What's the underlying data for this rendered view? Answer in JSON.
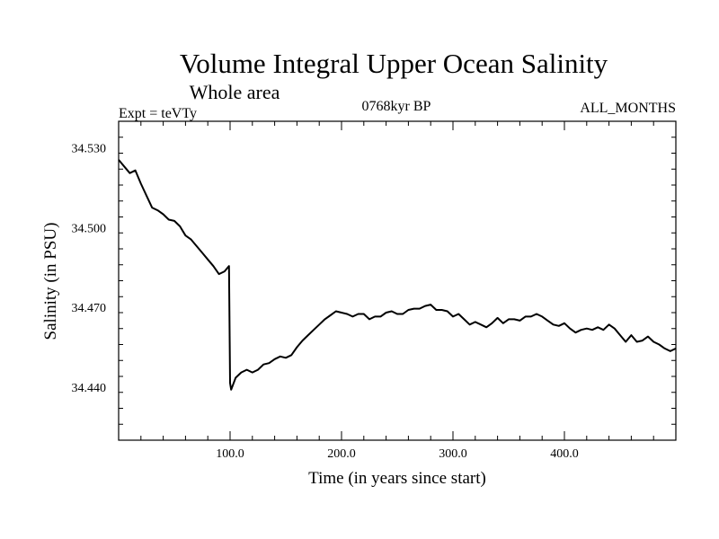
{
  "chart_data": {
    "type": "line",
    "title": "Volume Integral Upper Ocean Salinity",
    "subtitle": "Whole area",
    "info_left": "Expt = teVTy",
    "info_center": "0768kyr BP",
    "info_right": "ALL_MONTHS",
    "xlabel": "Time (in years since start)",
    "ylabel": "Salinity (in PSU)",
    "xlim": [
      0,
      500
    ],
    "ylim": [
      34.42,
      34.54
    ],
    "x_ticks": [
      100.0,
      200.0,
      300.0,
      400.0
    ],
    "x_tick_labels": [
      "100.0",
      "200.0",
      "300.0",
      "400.0"
    ],
    "y_ticks": [
      34.44,
      34.47,
      34.5,
      34.53
    ],
    "y_tick_labels": [
      "34.440",
      "34.470",
      "34.500",
      "34.530"
    ],
    "grid": false,
    "series": [
      {
        "x": [
          0,
          5,
          10,
          15,
          20,
          25,
          30,
          35,
          40,
          45,
          50,
          55,
          60,
          65,
          70,
          75,
          80,
          85,
          90,
          95,
          99,
          100,
          101,
          105,
          110,
          115,
          120,
          125,
          130,
          135,
          140,
          145,
          150,
          155,
          160,
          165,
          170,
          175,
          180,
          185,
          190,
          195,
          200,
          205,
          210,
          215,
          220,
          225,
          230,
          235,
          240,
          245,
          250,
          255,
          260,
          265,
          270,
          275,
          280,
          285,
          290,
          295,
          300,
          305,
          310,
          315,
          320,
          325,
          330,
          335,
          340,
          345,
          350,
          355,
          360,
          365,
          370,
          375,
          380,
          385,
          390,
          395,
          400,
          405,
          410,
          415,
          420,
          425,
          430,
          435,
          440,
          445,
          450,
          455,
          460,
          465,
          470,
          475,
          480,
          485,
          490,
          495,
          500
        ],
        "y": [
          34.5255,
          34.523,
          34.5205,
          34.5215,
          34.5165,
          34.512,
          34.5075,
          34.5065,
          34.505,
          34.503,
          34.5025,
          34.5005,
          34.497,
          34.4955,
          34.493,
          34.4905,
          34.488,
          34.4855,
          34.4825,
          34.4835,
          34.4855,
          34.4415,
          34.439,
          34.4435,
          34.4455,
          34.4465,
          34.4455,
          34.4465,
          34.4485,
          34.449,
          34.4505,
          34.4515,
          34.451,
          34.452,
          34.455,
          34.4575,
          34.4595,
          34.4615,
          34.4635,
          34.4655,
          34.467,
          34.4685,
          34.468,
          34.4675,
          34.4665,
          34.4675,
          34.4675,
          34.4655,
          34.4665,
          34.4665,
          34.468,
          34.4685,
          34.4675,
          34.4675,
          34.469,
          34.4695,
          34.4695,
          34.4705,
          34.471,
          34.469,
          34.469,
          34.4685,
          34.4665,
          34.4675,
          34.4655,
          34.4635,
          34.4645,
          34.4635,
          34.4625,
          34.464,
          34.466,
          34.464,
          34.4655,
          34.4655,
          34.465,
          34.4665,
          34.4665,
          34.4675,
          34.4665,
          34.465,
          34.4635,
          34.463,
          34.464,
          34.462,
          34.4605,
          34.4615,
          34.462,
          34.4615,
          34.4625,
          34.4615,
          34.4635,
          34.462,
          34.4595,
          34.457,
          34.4595,
          34.457,
          34.4575,
          34.459,
          34.457,
          34.456,
          34.4545,
          34.4535,
          34.4545
        ]
      }
    ]
  }
}
